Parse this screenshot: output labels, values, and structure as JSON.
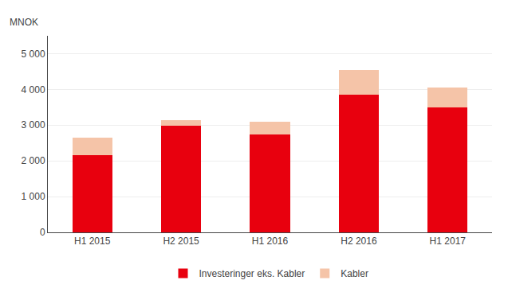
{
  "chart_data": {
    "type": "bar",
    "stacked": true,
    "ylabel": "MNOK",
    "categories": [
      "H1 2015",
      "H2 2015",
      "H1 2016",
      "H2 2016",
      "H1 2017"
    ],
    "series": [
      {
        "name": "Investeringer eks. Kabler",
        "color": "#e8000e",
        "values": [
          2150,
          2980,
          2750,
          3850,
          3500
        ]
      },
      {
        "name": "Kabler",
        "color": "#f5c4a8",
        "values": [
          500,
          150,
          350,
          700,
          550
        ]
      }
    ],
    "ylim": [
      0,
      5500
    ],
    "yticks": [
      0,
      {
        "value": 1000,
        "label": "1 000"
      },
      {
        "value": 2000,
        "label": "2 000"
      },
      {
        "value": 3000,
        "label": "3 000"
      },
      {
        "value": 4000,
        "label": "4 000"
      },
      {
        "value": 5000,
        "label": "5 000"
      }
    ],
    "grid": true,
    "legend": "bottom"
  }
}
